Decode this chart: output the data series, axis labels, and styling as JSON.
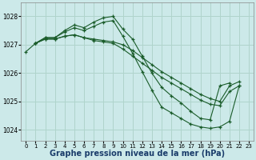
{
  "bg_color": "#cce9e9",
  "grid_color": "#b0d4cc",
  "line_color": "#1a5c2a",
  "marker_color": "#1a5c2a",
  "xlabel": "Graphe pression niveau de la mer (hPa)",
  "xlabel_fontsize": 7,
  "yticks": [
    1024,
    1025,
    1026,
    1027,
    1028
  ],
  "xticks": [
    0,
    1,
    2,
    3,
    4,
    5,
    6,
    7,
    8,
    9,
    10,
    11,
    12,
    13,
    14,
    15,
    16,
    17,
    18,
    19,
    20,
    21,
    22,
    23
  ],
  "xlim": [
    -0.5,
    23.5
  ],
  "ylim": [
    1023.6,
    1028.5
  ],
  "series": [
    {
      "x": [
        0,
        1,
        2,
        3,
        4,
        5,
        6,
        7,
        8,
        9,
        10,
        11,
        12,
        13,
        14,
        15,
        16,
        17,
        18,
        19,
        20,
        21
      ],
      "y": [
        1026.75,
        1027.05,
        1027.25,
        1027.25,
        1027.5,
        1027.7,
        1027.6,
        1027.8,
        1027.95,
        1028.0,
        1027.55,
        1027.2,
        1026.6,
        1026.0,
        1025.5,
        1025.2,
        1024.95,
        1024.65,
        1024.4,
        1024.35,
        1025.55,
        1025.65
      ]
    },
    {
      "x": [
        1,
        2,
        3,
        4,
        5,
        6,
        7,
        8,
        9,
        10,
        11,
        12,
        13,
        14,
        15,
        16,
        17,
        18,
        19,
        20,
        21,
        22
      ],
      "y": [
        1027.05,
        1027.2,
        1027.2,
        1027.3,
        1027.35,
        1027.25,
        1027.2,
        1027.15,
        1027.1,
        1027.0,
        1026.8,
        1026.55,
        1026.3,
        1026.05,
        1025.85,
        1025.65,
        1025.45,
        1025.25,
        1025.1,
        1025.0,
        1025.55,
        1025.7
      ]
    },
    {
      "x": [
        1,
        2,
        3,
        4,
        5,
        6,
        7,
        8,
        9,
        10,
        11,
        12,
        13,
        14,
        15,
        16,
        17,
        18,
        19,
        20,
        21,
        22
      ],
      "y": [
        1027.05,
        1027.2,
        1027.2,
        1027.3,
        1027.35,
        1027.25,
        1027.15,
        1027.1,
        1027.05,
        1026.85,
        1026.6,
        1026.35,
        1026.1,
        1025.85,
        1025.65,
        1025.45,
        1025.25,
        1025.05,
        1024.9,
        1024.85,
        1025.35,
        1025.55
      ]
    },
    {
      "x": [
        1,
        2,
        3,
        4,
        5,
        6,
        7,
        8,
        9,
        10,
        11,
        12,
        13,
        14,
        15,
        16,
        17,
        18,
        19,
        20,
        21,
        22
      ],
      "y": [
        1027.05,
        1027.25,
        1027.25,
        1027.45,
        1027.6,
        1027.5,
        1027.65,
        1027.8,
        1027.85,
        1027.3,
        1026.7,
        1026.05,
        1025.4,
        1024.8,
        1024.6,
        1024.4,
        1024.2,
        1024.1,
        1024.05,
        1024.1,
        1024.3,
        1025.55
      ]
    }
  ]
}
